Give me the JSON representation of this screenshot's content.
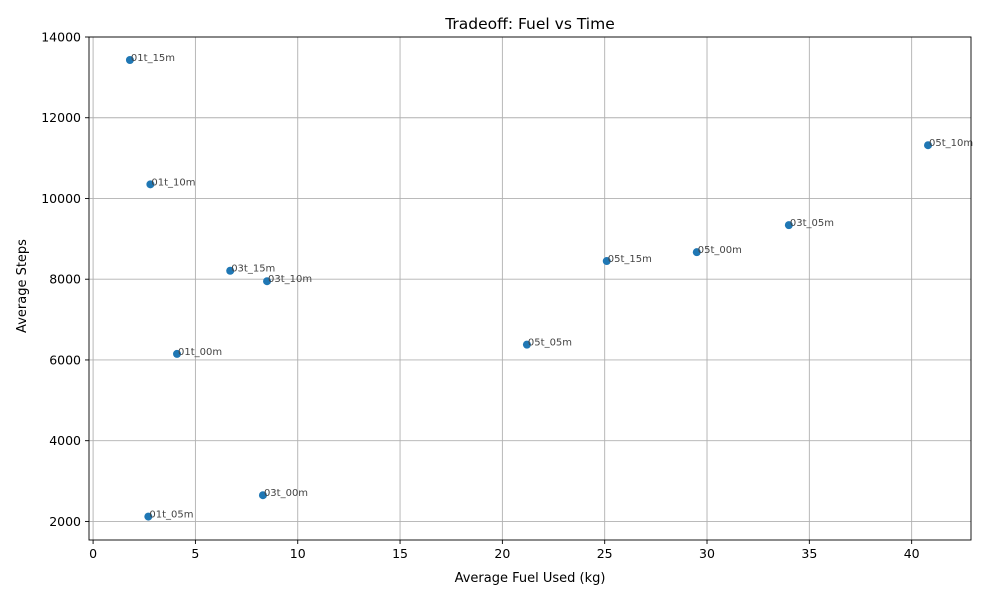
{
  "chart_data": {
    "type": "scatter",
    "title": "Tradeoff: Fuel vs Time",
    "xlabel": "Average Fuel Used (kg)",
    "ylabel": "Average Steps",
    "xlim": [
      -0.2,
      42.9
    ],
    "ylim": [
      1540,
      14000
    ],
    "xticks": [
      0,
      5,
      10,
      15,
      20,
      25,
      30,
      35,
      40
    ],
    "yticks": [
      2000,
      4000,
      6000,
      8000,
      10000,
      12000,
      14000
    ],
    "grid": true,
    "marker_color": "#1f77b4",
    "points": [
      {
        "label": "01t_15m",
        "x": 1.8,
        "y": 13430
      },
      {
        "label": "05t_10m",
        "x": 40.8,
        "y": 11320
      },
      {
        "label": "01t_10m",
        "x": 2.8,
        "y": 10350
      },
      {
        "label": "03t_05m",
        "x": 34.0,
        "y": 9340
      },
      {
        "label": "05t_00m",
        "x": 29.5,
        "y": 8670
      },
      {
        "label": "05t_15m",
        "x": 25.1,
        "y": 8450
      },
      {
        "label": "03t_15m",
        "x": 6.7,
        "y": 8210
      },
      {
        "label": "03t_10m",
        "x": 8.5,
        "y": 7950
      },
      {
        "label": "05t_05m",
        "x": 21.2,
        "y": 6380
      },
      {
        "label": "01t_00m",
        "x": 4.1,
        "y": 6150
      },
      {
        "label": "03t_00m",
        "x": 8.3,
        "y": 2650
      },
      {
        "label": "01t_05m",
        "x": 2.7,
        "y": 2120
      }
    ]
  }
}
